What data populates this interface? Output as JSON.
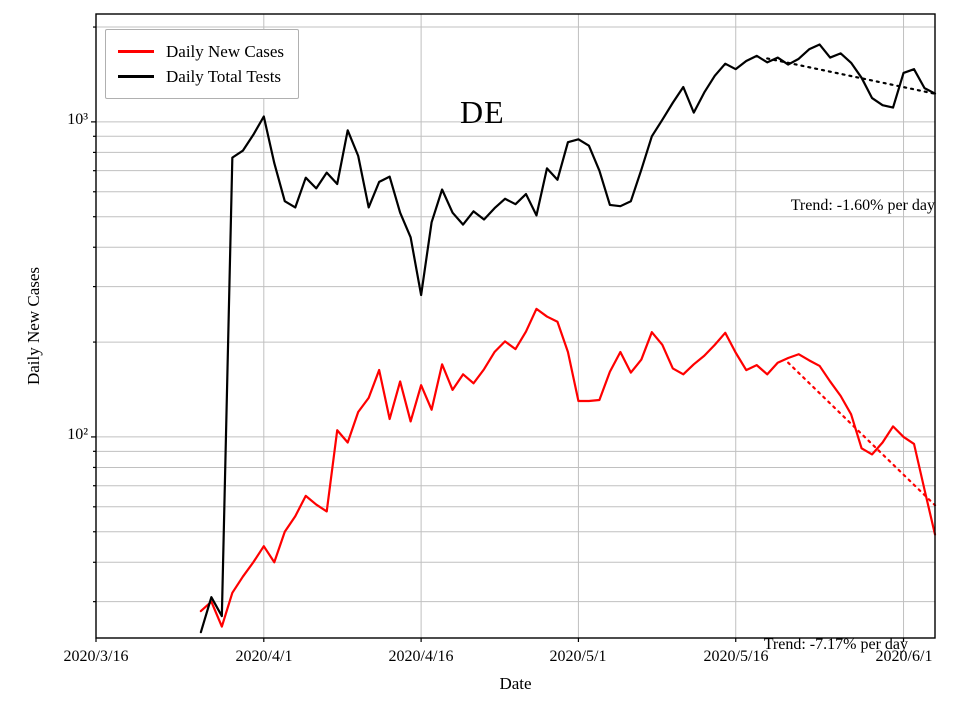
{
  "chart_data": {
    "type": "line",
    "title": "DE",
    "xlabel": "Date",
    "ylabel": "Daily New Cases",
    "y_scale": "log",
    "ylim": [
      23,
      2200
    ],
    "grid": true,
    "legend_position": "upper left",
    "x_domain_days": [
      0,
      80
    ],
    "x_axis_start_date": "2020/3/16",
    "frequency": "daily",
    "data_start_day": 10,
    "data_start_date": "2020/3/26",
    "x_tick_days": [
      0,
      16,
      31,
      46,
      61,
      77
    ],
    "x_tick_labels": [
      "2020/3/16",
      "2020/4/1",
      "2020/4/16",
      "2020/5/1",
      "2020/5/16",
      "2020/6/1"
    ],
    "y_ticks": [
      {
        "label": "10³",
        "value": 1000
      },
      {
        "label": "10²",
        "value": 100
      }
    ],
    "series": [
      {
        "name": "Daily New Cases",
        "color": "#ff0000",
        "values": [
          28,
          30,
          25,
          32,
          36,
          40,
          45,
          40,
          50,
          56,
          65,
          61,
          58,
          105,
          96,
          120,
          133,
          163,
          114,
          150,
          112,
          146,
          122,
          170,
          141,
          158,
          148,
          164,
          186,
          201,
          190,
          216,
          255,
          241,
          232,
          186,
          130,
          130,
          131,
          161,
          186,
          160,
          176,
          215,
          196,
          165,
          158,
          170,
          181,
          196,
          214,
          185,
          163,
          169,
          158,
          172,
          178,
          183,
          175,
          168,
          150,
          135,
          118,
          92,
          88,
          96,
          108,
          100,
          95,
          68,
          49
        ]
      },
      {
        "name": "Daily Total Tests",
        "color": "#000000",
        "values": [
          24,
          31,
          27,
          770,
          810,
          910,
          1040,
          740,
          560,
          535,
          665,
          615,
          690,
          635,
          940,
          780,
          535,
          645,
          670,
          515,
          430,
          282,
          480,
          610,
          515,
          472,
          520,
          490,
          532,
          570,
          548,
          590,
          505,
          712,
          655,
          862,
          880,
          840,
          700,
          545,
          540,
          560,
          705,
          900,
          1015,
          1150,
          1290,
          1070,
          1240,
          1400,
          1530,
          1470,
          1560,
          1620,
          1545,
          1600,
          1520,
          1585,
          1700,
          1760,
          1600,
          1650,
          1540,
          1380,
          1190,
          1130,
          1110,
          1430,
          1470,
          1280,
          1230
        ]
      }
    ],
    "trends": [
      {
        "name": "tests-trend",
        "label": "Trend: -1.60% per day",
        "rate_percent_per_day": -1.6,
        "color": "#000000",
        "start_day": 64,
        "end_day": 80,
        "start_value": 1590
      },
      {
        "name": "cases-trend",
        "label": "Trend: -7.17% per day",
        "rate_percent_per_day": -7.17,
        "color": "#ff0000",
        "start_day": 66,
        "end_day": 80,
        "start_value": 172
      }
    ],
    "style": {
      "grid_color": "#c0c0c0",
      "frame_color": "#000000",
      "background": "#ffffff"
    }
  }
}
